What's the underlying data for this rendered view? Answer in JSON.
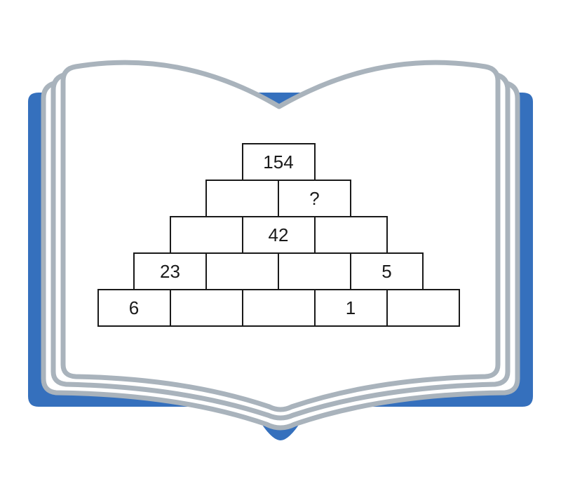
{
  "colors": {
    "book_cover": "#3570bd",
    "page_edge": "#a9b3bc",
    "page_fill": "#ffffff",
    "brick_border": "#1a1a1a",
    "text": "#1a1a1a"
  },
  "icon": "open-book-icon",
  "pyramid": {
    "rows": [
      [
        "154"
      ],
      [
        "",
        "?"
      ],
      [
        "",
        "42",
        ""
      ],
      [
        "23",
        "",
        "",
        "5"
      ],
      [
        "6",
        "",
        "",
        "1",
        ""
      ]
    ]
  }
}
